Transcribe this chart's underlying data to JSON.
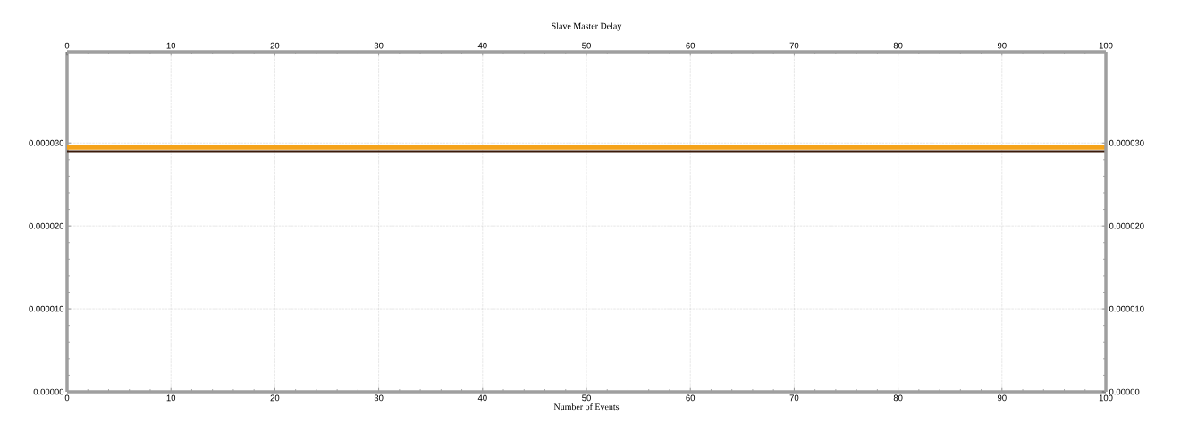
{
  "chart_data": {
    "type": "line",
    "title": "Slave Master Delay",
    "xlabel": "Number of Events",
    "x": [
      0,
      100
    ],
    "series": [
      {
        "color": "#f5a31a",
        "values": [
          2.95e-05,
          2.95e-05
        ]
      },
      {
        "color": "#3a1a0a",
        "values": [
          2.9e-05,
          2.9e-05
        ]
      }
    ],
    "xlim": [
      0,
      100
    ],
    "xticks": [
      0,
      10,
      20,
      30,
      40,
      50,
      60,
      70,
      80,
      90,
      100
    ],
    "x2lim": [
      0,
      100
    ],
    "x2ticks": [
      0,
      10,
      20,
      30,
      40,
      50,
      60,
      70,
      80,
      90,
      100
    ],
    "ylim": [
      0,
      4.1e-05
    ],
    "yticks": [
      {
        "value": 0,
        "label": "0.00000"
      },
      {
        "value": 1e-05,
        "label": "0.000010"
      },
      {
        "value": 2e-05,
        "label": "0.000020"
      },
      {
        "value": 3e-05,
        "label": "0.000030"
      }
    ],
    "y2lim": [
      0,
      4.1e-05
    ],
    "y2ticks": [
      {
        "value": 0,
        "label": "0.00000"
      },
      {
        "value": 1e-05,
        "label": "0.000010"
      },
      {
        "value": 2e-05,
        "label": "0.000020"
      },
      {
        "value": 3e-05,
        "label": "0.000030"
      }
    ],
    "grid": true,
    "line_style": "solid"
  }
}
